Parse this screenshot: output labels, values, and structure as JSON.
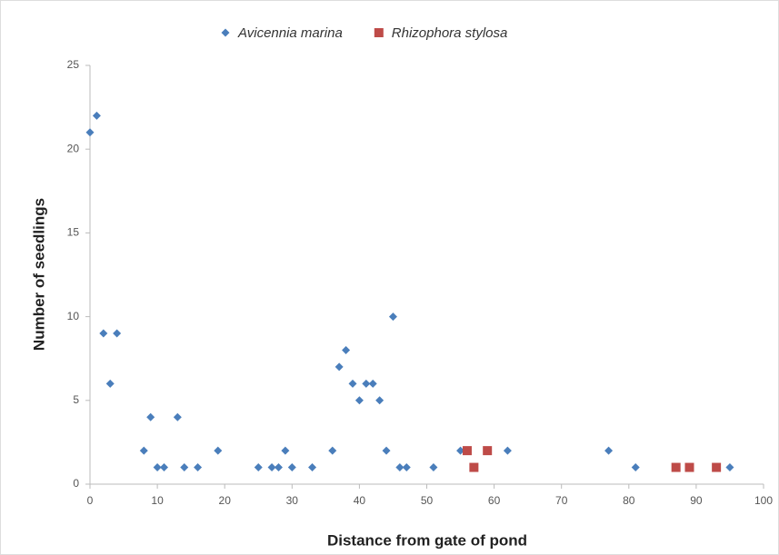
{
  "chart_data": {
    "type": "scatter",
    "title": "",
    "x_label": "Distance from  gate of pond",
    "y_label": "Number of seedlings",
    "xlim": [
      0,
      100
    ],
    "xticks": [
      0,
      10,
      20,
      30,
      40,
      50,
      60,
      70,
      80,
      90,
      100
    ],
    "ylim": [
      0,
      25
    ],
    "yticks": [
      0,
      5,
      10,
      15,
      20,
      25
    ],
    "grid": false,
    "legend": "top",
    "series": [
      {
        "name": "Avicennia marina",
        "color": "#4a7ebb",
        "marker": "diamond",
        "x": [
          0,
          1,
          2,
          3,
          4,
          8,
          9,
          10,
          11,
          13,
          14,
          16,
          19,
          25,
          27,
          28,
          29,
          30,
          33,
          36,
          37,
          38,
          39,
          40,
          41,
          42,
          43,
          44,
          45,
          46,
          47,
          51,
          55,
          62,
          77,
          81,
          95
        ],
        "values": [
          21,
          22,
          9,
          6,
          9,
          2,
          4,
          1,
          1,
          4,
          1,
          1,
          2,
          1,
          1,
          1,
          2,
          1,
          1,
          2,
          7,
          8,
          6,
          5,
          6,
          6,
          5,
          2,
          10,
          1,
          1,
          1,
          2,
          2,
          2,
          1,
          1
        ]
      },
      {
        "name": "Rhizophora stylosa",
        "color": "#be4b48",
        "marker": "square",
        "x": [
          56,
          57,
          59,
          87,
          89,
          93
        ],
        "values": [
          2,
          1,
          2,
          1,
          1,
          1
        ]
      }
    ]
  }
}
